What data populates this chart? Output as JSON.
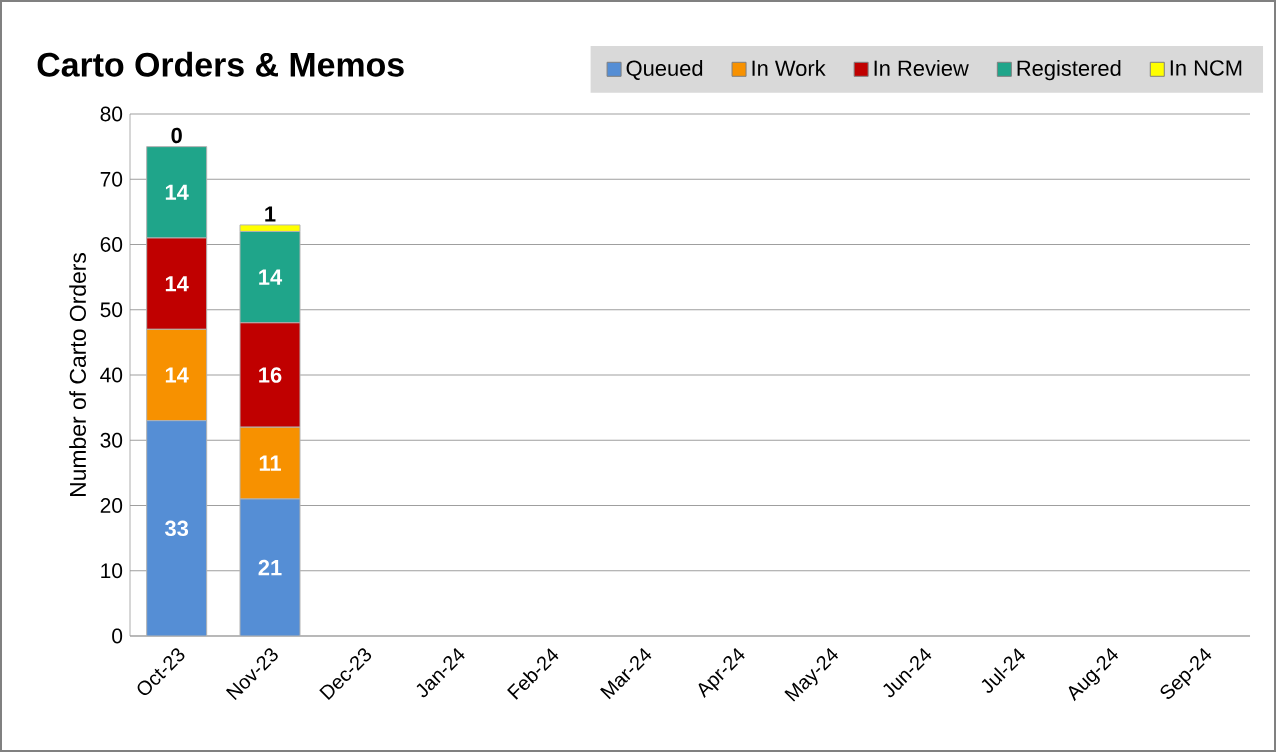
{
  "chart_data": {
    "type": "bar",
    "stacked": true,
    "title": "Carto Orders & Memos",
    "ylabel": "Number of Carto Orders",
    "categories": [
      "Oct-23",
      "Nov-23",
      "Dec-23",
      "Jan-24",
      "Feb-24",
      "Mar-24",
      "Apr-24",
      "May-24",
      "Jun-24",
      "Jul-24",
      "Aug-24",
      "Sep-24"
    ],
    "series": [
      {
        "name": "Queued",
        "color": "#558ed5",
        "values": [
          33,
          21,
          null,
          null,
          null,
          null,
          null,
          null,
          null,
          null,
          null,
          null
        ]
      },
      {
        "name": "In Work",
        "color": "#f79100",
        "values": [
          14,
          11,
          null,
          null,
          null,
          null,
          null,
          null,
          null,
          null,
          null,
          null
        ]
      },
      {
        "name": "In Review",
        "color": "#c00000",
        "values": [
          14,
          16,
          null,
          null,
          null,
          null,
          null,
          null,
          null,
          null,
          null,
          null
        ]
      },
      {
        "name": "Registered",
        "color": "#1fa58a",
        "values": [
          14,
          14,
          null,
          null,
          null,
          null,
          null,
          null,
          null,
          null,
          null,
          null
        ]
      },
      {
        "name": "In NCM",
        "color": "#ffff00",
        "values": [
          0,
          1,
          null,
          null,
          null,
          null,
          null,
          null,
          null,
          null,
          null,
          null
        ]
      }
    ],
    "ylim": [
      0,
      80
    ],
    "yticks": [
      0,
      10,
      20,
      30,
      40,
      50,
      60,
      70,
      80
    ],
    "grid": "y",
    "legend": "top right",
    "data_labels": true
  }
}
